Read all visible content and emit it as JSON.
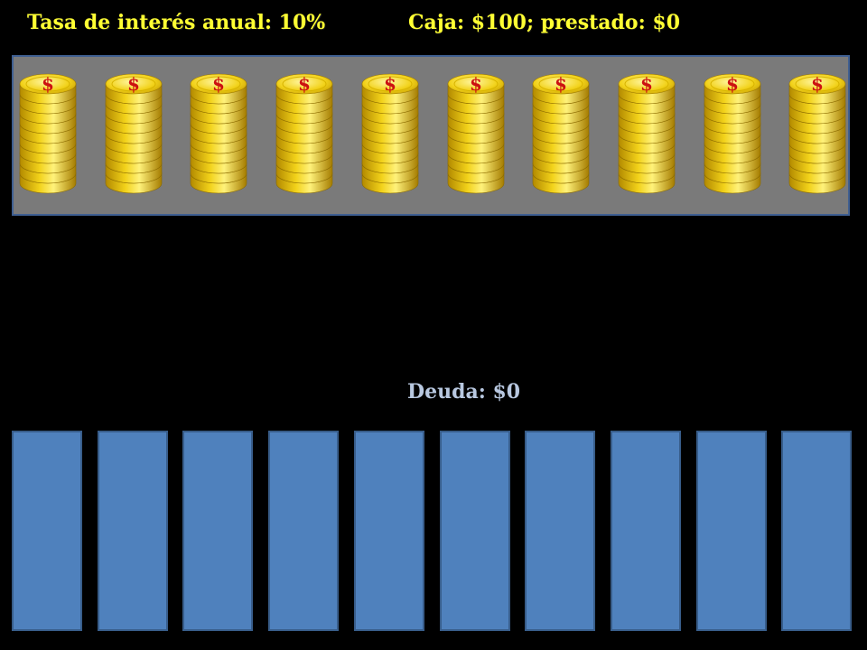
{
  "header": {
    "rate_text": "Tasa de interés anual: 10%",
    "cash_text": "Caja: $100; prestado: $0"
  },
  "vault": {
    "stack_count": 10,
    "coins_per_stack": 10,
    "coin_symbol": "$",
    "coin_color": "#f2d21a",
    "symbol_color": "#cc1111"
  },
  "debt": {
    "label": "Deuda: $0",
    "slot_count": 10,
    "slot_color": "#4f81bd"
  }
}
